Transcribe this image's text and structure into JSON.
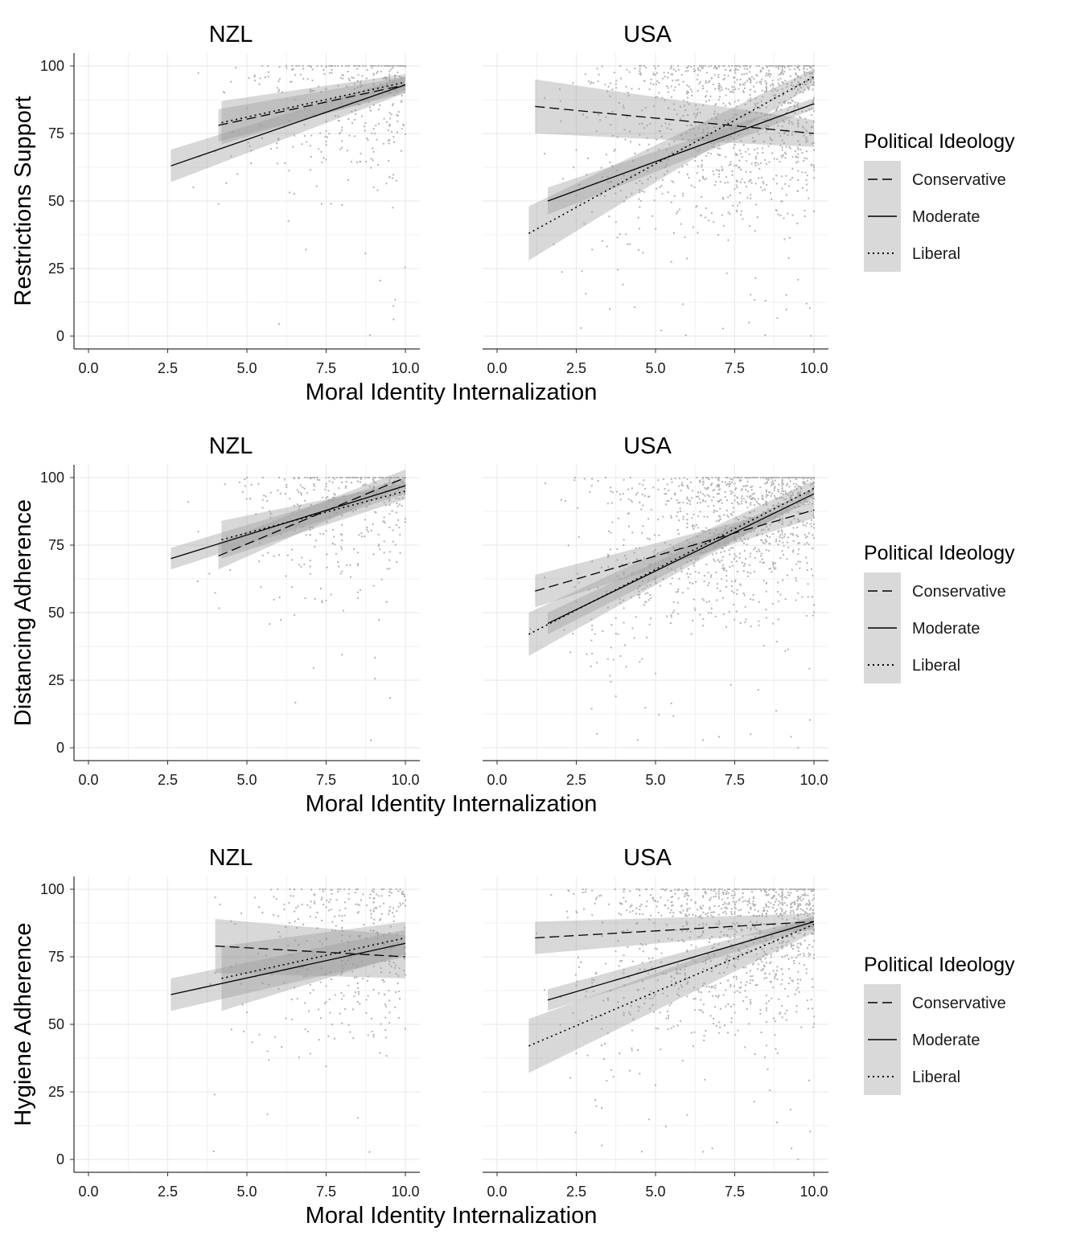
{
  "chart_data": [
    {
      "type": "scatter",
      "row": 1,
      "ylabel": "Restrictions Support",
      "xlabel": "Moral Identity Internalization",
      "xlim": [
        0,
        10
      ],
      "ylim": [
        0,
        100
      ],
      "x_ticks": [
        "0.0",
        "2.5",
        "5.0",
        "7.5",
        "10.0"
      ],
      "y_ticks": [
        "0",
        "25",
        "50",
        "75",
        "100"
      ],
      "grid": true,
      "legend": {
        "title": "Political Ideology",
        "placement": "right",
        "entries": [
          {
            "label": "Conservative",
            "linetype": "dashed"
          },
          {
            "label": "Moderate",
            "linetype": "solid"
          },
          {
            "label": "Liberal",
            "linetype": "dotted"
          }
        ]
      },
      "panels": [
        {
          "title": "NZL",
          "fits": [
            {
              "name": "Conservative",
              "linetype": "dashed",
              "x": [
                4.1,
                10.0
              ],
              "y": [
                78,
                93
              ],
              "ci": [
                6,
                3
              ]
            },
            {
              "name": "Moderate",
              "linetype": "solid",
              "x": [
                2.6,
                10.0
              ],
              "y": [
                63,
                93
              ],
              "ci": [
                6,
                3
              ]
            },
            {
              "name": "Liberal",
              "linetype": "dotted",
              "x": [
                4.2,
                10.0
              ],
              "y": [
                79,
                94
              ],
              "ci": [
                8,
                3
              ]
            }
          ]
        },
        {
          "title": "USA",
          "fits": [
            {
              "name": "Conservative",
              "linetype": "dashed",
              "x": [
                1.2,
                10.0
              ],
              "y": [
                85,
                75
              ],
              "ci": [
                10,
                5
              ]
            },
            {
              "name": "Moderate",
              "linetype": "solid",
              "x": [
                1.6,
                10.0
              ],
              "y": [
                50,
                86
              ],
              "ci": [
                5,
                2
              ]
            },
            {
              "name": "Liberal",
              "linetype": "dotted",
              "x": [
                1.0,
                10.0
              ],
              "y": [
                38,
                96
              ],
              "ci": [
                10,
                3
              ]
            }
          ]
        }
      ]
    },
    {
      "type": "scatter",
      "row": 2,
      "ylabel": "Distancing Adherence",
      "xlabel": "Moral Identity Internalization",
      "xlim": [
        0,
        10
      ],
      "ylim": [
        0,
        100
      ],
      "x_ticks": [
        "0.0",
        "2.5",
        "5.0",
        "7.5",
        "10.0"
      ],
      "y_ticks": [
        "0",
        "25",
        "50",
        "75",
        "100"
      ],
      "grid": true,
      "legend": {
        "title": "Political Ideology",
        "placement": "right",
        "entries": [
          {
            "label": "Conservative",
            "linetype": "dashed"
          },
          {
            "label": "Moderate",
            "linetype": "solid"
          },
          {
            "label": "Liberal",
            "linetype": "dotted"
          }
        ]
      },
      "panels": [
        {
          "title": "NZL",
          "fits": [
            {
              "name": "Conservative",
              "linetype": "dashed",
              "x": [
                4.1,
                10.0
              ],
              "y": [
                71,
                100
              ],
              "ci": [
                5,
                3
              ]
            },
            {
              "name": "Moderate",
              "linetype": "solid",
              "x": [
                2.6,
                10.0
              ],
              "y": [
                70,
                97
              ],
              "ci": [
                4,
                3
              ]
            },
            {
              "name": "Liberal",
              "linetype": "dotted",
              "x": [
                4.2,
                10.0
              ],
              "y": [
                77,
                95
              ],
              "ci": [
                7,
                3
              ]
            }
          ]
        },
        {
          "title": "USA",
          "fits": [
            {
              "name": "Conservative",
              "linetype": "dashed",
              "x": [
                1.2,
                10.0
              ],
              "y": [
                58,
                88
              ],
              "ci": [
                6,
                3
              ]
            },
            {
              "name": "Moderate",
              "linetype": "solid",
              "x": [
                1.6,
                10.0
              ],
              "y": [
                46,
                94
              ],
              "ci": [
                4,
                2
              ]
            },
            {
              "name": "Liberal",
              "linetype": "dotted",
              "x": [
                1.0,
                10.0
              ],
              "y": [
                42,
                96
              ],
              "ci": [
                8,
                3
              ]
            }
          ]
        }
      ]
    },
    {
      "type": "scatter",
      "row": 3,
      "ylabel": "Hygiene Adherence",
      "xlabel": "Moral Identity Internalization",
      "xlim": [
        0,
        10
      ],
      "ylim": [
        0,
        100
      ],
      "x_ticks": [
        "0.0",
        "2.5",
        "5.0",
        "7.5",
        "10.0"
      ],
      "y_ticks": [
        "0",
        "25",
        "50",
        "75",
        "100"
      ],
      "grid": true,
      "legend": {
        "title": "Political Ideology",
        "placement": "right",
        "entries": [
          {
            "label": "Conservative",
            "linetype": "dashed"
          },
          {
            "label": "Moderate",
            "linetype": "solid"
          },
          {
            "label": "Liberal",
            "linetype": "dotted"
          }
        ]
      },
      "panels": [
        {
          "title": "NZL",
          "fits": [
            {
              "name": "Conservative",
              "linetype": "dashed",
              "x": [
                4.0,
                10.0
              ],
              "y": [
                79,
                75
              ],
              "ci": [
                10,
                8
              ]
            },
            {
              "name": "Moderate",
              "linetype": "solid",
              "x": [
                2.6,
                10.0
              ],
              "y": [
                61,
                80
              ],
              "ci": [
                6,
                5
              ]
            },
            {
              "name": "Liberal",
              "linetype": "dotted",
              "x": [
                4.2,
                10.0
              ],
              "y": [
                67,
                82
              ],
              "ci": [
                12,
                6
              ]
            }
          ]
        },
        {
          "title": "USA",
          "fits": [
            {
              "name": "Conservative",
              "linetype": "dashed",
              "x": [
                1.2,
                10.0
              ],
              "y": [
                82,
                88
              ],
              "ci": [
                6,
                3
              ]
            },
            {
              "name": "Moderate",
              "linetype": "solid",
              "x": [
                1.6,
                10.0
              ],
              "y": [
                59,
                88
              ],
              "ci": [
                4,
                2
              ]
            },
            {
              "name": "Liberal",
              "linetype": "dotted",
              "x": [
                1.0,
                10.0
              ],
              "y": [
                42,
                87
              ],
              "ci": [
                10,
                3
              ]
            }
          ]
        }
      ]
    }
  ]
}
